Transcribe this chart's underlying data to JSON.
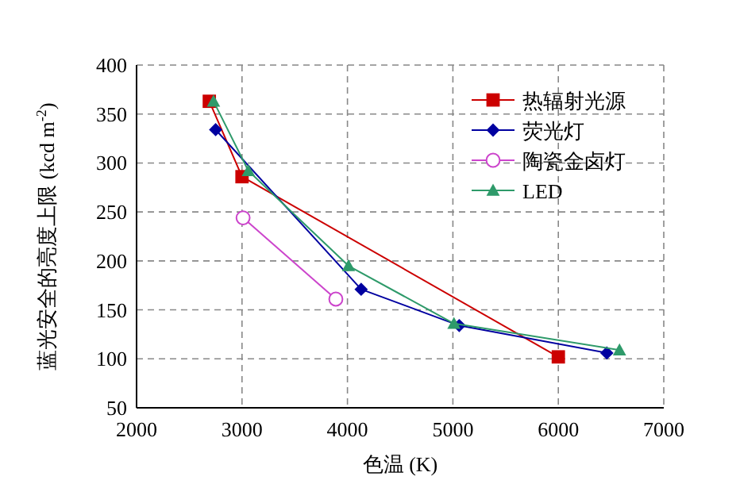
{
  "chart_data": {
    "type": "line",
    "xlabel": "色温 (K)",
    "ylabel": "蓝光安全的亮度上限 (kcd m$^{-2}$)",
    "xlim": [
      2000,
      7000
    ],
    "xticks": [
      2000,
      3000,
      4000,
      5000,
      6000,
      7000
    ],
    "ylim": [
      50,
      400
    ],
    "yticks": [
      50,
      100,
      150,
      200,
      250,
      300,
      350,
      400
    ],
    "grid": true,
    "legend": "top right",
    "line_style": "solid",
    "series": [
      {
        "name": "热辐射光源",
        "color": "#cc0000",
        "marker": "square",
        "x": [
          2690,
          3000,
          6000
        ],
        "values": [
          363,
          286,
          102
        ]
      },
      {
        "name": "荧光灯",
        "color": "#0000a0",
        "marker": "diamond",
        "x": [
          2750,
          4130,
          5060,
          6460
        ],
        "values": [
          334,
          171,
          134,
          106
        ]
      },
      {
        "name": "陶瓷金卤灯",
        "color": "#cc44cc",
        "marker": "circle",
        "x": [
          3010,
          3890
        ],
        "values": [
          244,
          161
        ]
      },
      {
        "name": "LED",
        "color": "#2e9a6a",
        "marker": "triangle",
        "x": [
          2730,
          3060,
          4010,
          5010,
          6580
        ],
        "values": [
          363,
          292,
          195,
          136,
          109
        ]
      }
    ]
  }
}
